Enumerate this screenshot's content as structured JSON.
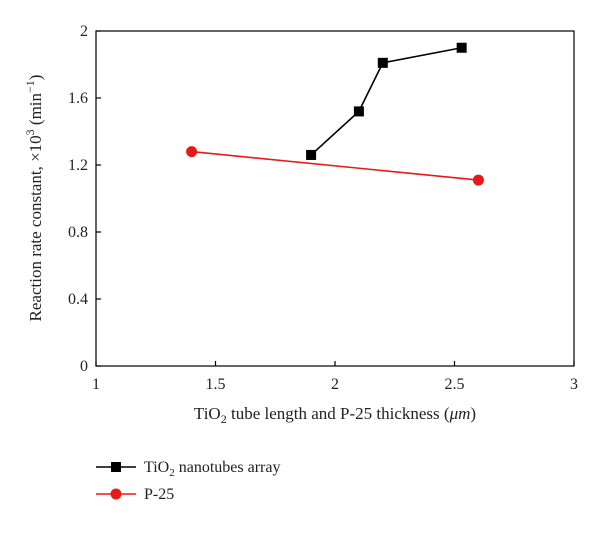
{
  "chart_data": {
    "type": "line",
    "xlim": [
      1,
      3
    ],
    "ylim": [
      0,
      2
    ],
    "x_ticks": [
      "1",
      "1.5",
      "2",
      "2.5",
      "3"
    ],
    "x_tick_values": [
      1,
      1.5,
      2,
      2.5,
      3
    ],
    "y_ticks": [
      "0",
      "0.4",
      "0.8",
      "1.2",
      "1.6",
      "2"
    ],
    "y_tick_values": [
      0,
      0.4,
      0.8,
      1.2,
      1.6,
      2
    ],
    "xlabel": {
      "pre": "TiO",
      "sub": "2",
      "post": " tube length and P-25 thickness (",
      "unit": "μm",
      "close": ")"
    },
    "ylabel": {
      "pre": "Reaction rate constant, ×10",
      "sup": "3",
      "mid": " (min",
      "sup2": "−1",
      "close": ")"
    },
    "grid": false,
    "legend_position": "bottom-left, below plot",
    "series": [
      {
        "name": "TiO2 nanotubes array",
        "legend": {
          "pre": "TiO",
          "sub": "2",
          "post": " nanotubes array"
        },
        "color": "#000000",
        "marker": "square",
        "x": [
          1.9,
          2.1,
          2.2,
          2.53
        ],
        "y": [
          1.26,
          1.52,
          1.81,
          1.9
        ]
      },
      {
        "name": "P-25",
        "legend": {
          "pre": "P-25",
          "sub": "",
          "post": ""
        },
        "color": "#e8191b",
        "marker": "circle",
        "x": [
          1.4,
          2.6
        ],
        "y": [
          1.28,
          1.11
        ]
      }
    ]
  }
}
